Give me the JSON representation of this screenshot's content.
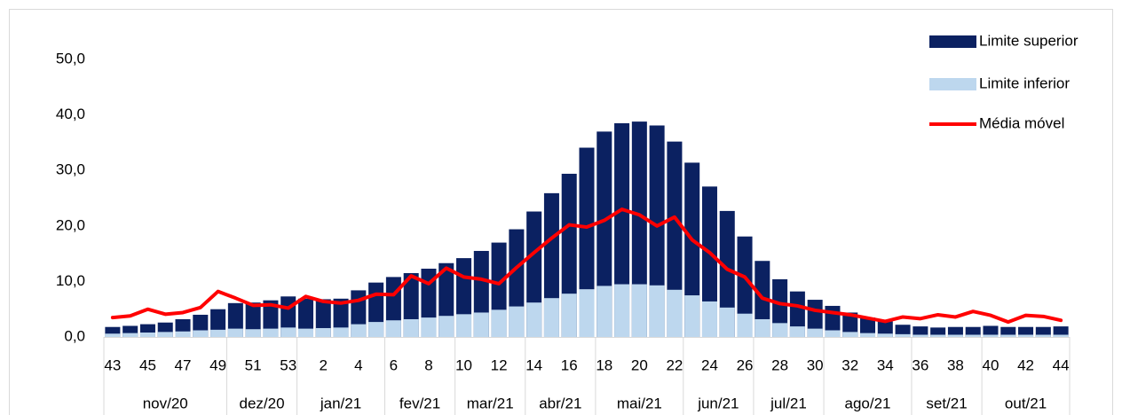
{
  "chart_data": {
    "type": "bar_line",
    "categories": [
      43,
      null,
      45,
      null,
      47,
      null,
      49,
      null,
      51,
      null,
      53,
      null,
      2,
      null,
      4,
      null,
      6,
      null,
      8,
      null,
      10,
      null,
      12,
      null,
      14,
      null,
      16,
      null,
      18,
      null,
      20,
      null,
      22,
      null,
      24,
      null,
      26,
      null,
      28,
      null,
      30,
      null,
      32,
      null,
      34,
      null,
      36,
      null,
      38,
      null,
      40,
      null,
      42,
      null,
      44
    ],
    "month_groups": [
      {
        "label": "nov/20",
        "count": 7
      },
      {
        "label": "dez/20",
        "count": 4
      },
      {
        "label": "jan/21",
        "count": 5
      },
      {
        "label": "fev/21",
        "count": 4
      },
      {
        "label": "mar/21",
        "count": 4
      },
      {
        "label": "abr/21",
        "count": 4
      },
      {
        "label": "mai/21",
        "count": 5
      },
      {
        "label": "jun/21",
        "count": 4
      },
      {
        "label": "jul/21",
        "count": 4
      },
      {
        "label": "ago/21",
        "count": 5
      },
      {
        "label": "set/21",
        "count": 4
      },
      {
        "label": "out/21",
        "count": 5
      }
    ],
    "series": [
      {
        "name": "Limite superior",
        "kind": "bar",
        "color": "#0b2161",
        "values": [
          1.8,
          2.0,
          2.3,
          2.6,
          3.2,
          4.0,
          5.0,
          6.1,
          6.2,
          6.6,
          7.3,
          6.9,
          6.8,
          6.9,
          8.4,
          9.8,
          10.8,
          11.5,
          12.3,
          13.3,
          14.2,
          15.5,
          17.0,
          19.4,
          22.6,
          25.9,
          29.4,
          34.1,
          37.0,
          38.5,
          38.8,
          38.1,
          35.2,
          31.4,
          27.1,
          22.7,
          18.1,
          13.7,
          10.4,
          8.2,
          6.7,
          5.6,
          4.4,
          3.5,
          2.8,
          2.2,
          1.9,
          1.7,
          1.8,
          1.8,
          2.0,
          1.8,
          1.8,
          1.8,
          1.9
        ]
      },
      {
        "name": "Limite inferior",
        "kind": "bar",
        "color": "#bdd7ee",
        "values": [
          0.6,
          0.7,
          0.8,
          0.9,
          1.0,
          1.2,
          1.3,
          1.5,
          1.4,
          1.5,
          1.7,
          1.5,
          1.6,
          1.7,
          2.3,
          2.7,
          3.0,
          3.2,
          3.5,
          3.8,
          4.1,
          4.4,
          4.9,
          5.5,
          6.2,
          7.0,
          7.8,
          8.6,
          9.2,
          9.5,
          9.5,
          9.3,
          8.5,
          7.5,
          6.4,
          5.3,
          4.2,
          3.2,
          2.5,
          1.9,
          1.5,
          1.2,
          0.9,
          0.7,
          0.6,
          0.5,
          0.4,
          0.4,
          0.4,
          0.4,
          0.4,
          0.4,
          0.4,
          0.4,
          0.4
        ]
      },
      {
        "name": "Média móvel",
        "kind": "line",
        "color": "#ff0000",
        "values": [
          3.5,
          3.8,
          5.0,
          4.1,
          4.4,
          5.3,
          8.2,
          7.0,
          5.7,
          5.8,
          5.2,
          7.3,
          6.4,
          6.1,
          6.6,
          7.7,
          7.6,
          11.0,
          9.6,
          12.4,
          10.8,
          10.4,
          9.6,
          12.5,
          15.2,
          17.8,
          20.2,
          19.8,
          21.0,
          23.0,
          22.0,
          20.0,
          21.6,
          17.5,
          15.2,
          12.2,
          10.8,
          7.0,
          6.0,
          5.6,
          4.8,
          4.4,
          4.0,
          3.4,
          2.8,
          3.6,
          3.3,
          4.0,
          3.6,
          4.6,
          3.9,
          2.7,
          3.9,
          3.7,
          3.0
        ]
      }
    ],
    "ylim": [
      0,
      50
    ],
    "yticks": [
      {
        "value": 0,
        "label": "0,0"
      },
      {
        "value": 10,
        "label": "10,0"
      },
      {
        "value": 20,
        "label": "20,0"
      },
      {
        "value": 30,
        "label": "30,0"
      },
      {
        "value": 40,
        "label": "40,0"
      },
      {
        "value": 50,
        "label": "50,0"
      }
    ],
    "grid": false,
    "legend": "top-right"
  }
}
